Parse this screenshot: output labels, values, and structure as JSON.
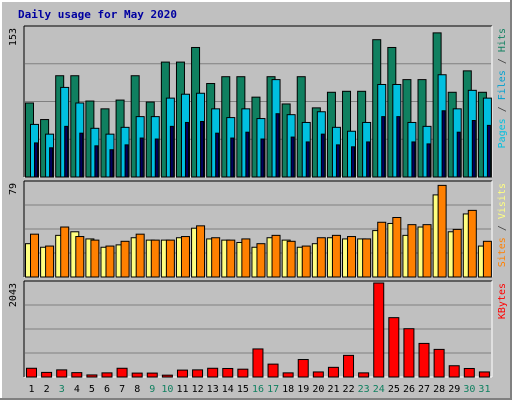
{
  "page": {
    "title": "Daily usage for May 2020"
  },
  "chart_data": [
    {
      "type": "bar",
      "panel": "pages-files-hits",
      "ymax_label": "153",
      "ylim": [
        0,
        153
      ],
      "grid": true,
      "legend": [
        {
          "text": "Pages",
          "color": "#00c0e0"
        },
        {
          "text": " / ",
          "color": "#404040"
        },
        {
          "text": "Files",
          "color": "#00a0d0"
        },
        {
          "text": " / ",
          "color": "#404040"
        },
        {
          "text": "Hits",
          "color": "#108060"
        }
      ],
      "categories": [
        "1",
        "2",
        "3",
        "4",
        "5",
        "6",
        "7",
        "8",
        "9",
        "10",
        "11",
        "12",
        "13",
        "14",
        "15",
        "16",
        "17",
        "18",
        "19",
        "20",
        "21",
        "22",
        "23",
        "24",
        "25",
        "26",
        "27",
        "28",
        "29",
        "30",
        "31"
      ],
      "series": [
        {
          "name": "Hits",
          "color": "#108060",
          "values": [
            76,
            59,
            104,
            104,
            78,
            70,
            79,
            104,
            77,
            118,
            118,
            133,
            96,
            103,
            103,
            82,
            103,
            75,
            103,
            71,
            87,
            88,
            88,
            141,
            133,
            100,
            100,
            148,
            87,
            109,
            87
          ]
        },
        {
          "name": "Files",
          "color": "#00c0e0",
          "values": [
            54,
            44,
            92,
            76,
            50,
            44,
            51,
            62,
            62,
            81,
            85,
            86,
            70,
            61,
            70,
            60,
            100,
            64,
            56,
            67,
            51,
            47,
            56,
            95,
            95,
            56,
            52,
            105,
            70,
            89,
            81
          ]
        },
        {
          "name": "Pages",
          "color": "#000060",
          "values": [
            35,
            30,
            52,
            45,
            32,
            28,
            33,
            40,
            39,
            52,
            56,
            57,
            45,
            40,
            46,
            39,
            65,
            41,
            36,
            44,
            33,
            31,
            36,
            62,
            62,
            36,
            34,
            68,
            46,
            58,
            53
          ]
        }
      ]
    },
    {
      "type": "bar",
      "panel": "sites-visits",
      "ymax_label": "79",
      "ylim": [
        0,
        79
      ],
      "grid": true,
      "legend": [
        {
          "text": "Sites",
          "color": "#ff8000"
        },
        {
          "text": " / ",
          "color": "#404040"
        },
        {
          "text": "Visits",
          "color": "#ffff80"
        }
      ],
      "categories": [
        "1",
        "2",
        "3",
        "4",
        "5",
        "6",
        "7",
        "8",
        "9",
        "10",
        "11",
        "12",
        "13",
        "14",
        "15",
        "16",
        "17",
        "18",
        "19",
        "20",
        "21",
        "22",
        "23",
        "24",
        "25",
        "26",
        "27",
        "28",
        "29",
        "30",
        "31"
      ],
      "series": [
        {
          "name": "Visits",
          "color": "#ffff80",
          "values": [
            28,
            25,
            35,
            38,
            32,
            25,
            27,
            33,
            31,
            31,
            33,
            41,
            32,
            31,
            29,
            25,
            33,
            31,
            25,
            28,
            33,
            32,
            32,
            39,
            45,
            35,
            42,
            69,
            38,
            53,
            26
          ]
        },
        {
          "name": "Sites",
          "color": "#ff8000",
          "values": [
            36,
            26,
            42,
            34,
            31,
            26,
            30,
            36,
            31,
            31,
            34,
            43,
            33,
            31,
            32,
            28,
            35,
            30,
            26,
            33,
            35,
            34,
            32,
            46,
            50,
            44,
            44,
            77,
            40,
            56,
            30
          ]
        }
      ]
    },
    {
      "type": "bar",
      "panel": "kbytes",
      "ymax_label": "2043",
      "ylim": [
        0,
        2043
      ],
      "grid": true,
      "legend": [
        {
          "text": "KBytes",
          "color": "#ff0000"
        }
      ],
      "categories": [
        "1",
        "2",
        "3",
        "4",
        "5",
        "6",
        "7",
        "8",
        "9",
        "10",
        "11",
        "12",
        "13",
        "14",
        "15",
        "16",
        "17",
        "18",
        "19",
        "20",
        "21",
        "22",
        "23",
        "24",
        "25",
        "26",
        "27",
        "28",
        "29",
        "30",
        "31"
      ],
      "series": [
        {
          "name": "KBytes",
          "color": "#ff0000",
          "values": [
            190,
            100,
            155,
            95,
            45,
            90,
            190,
            85,
            85,
            40,
            150,
            155,
            190,
            185,
            170,
            610,
            280,
            90,
            380,
            110,
            210,
            470,
            90,
            2043,
            1290,
            1050,
            730,
            600,
            245,
            185,
            110
          ]
        }
      ]
    }
  ],
  "day_labels": [
    {
      "text": "1",
      "color": "#000000"
    },
    {
      "text": "2",
      "color": "#000000"
    },
    {
      "text": "3",
      "color": "#108060"
    },
    {
      "text": "4",
      "color": "#000000"
    },
    {
      "text": "5",
      "color": "#000000"
    },
    {
      "text": "6",
      "color": "#000000"
    },
    {
      "text": "7",
      "color": "#000000"
    },
    {
      "text": "8",
      "color": "#000000"
    },
    {
      "text": "9",
      "color": "#108060"
    },
    {
      "text": "10",
      "color": "#108060"
    },
    {
      "text": "11",
      "color": "#000000"
    },
    {
      "text": "12",
      "color": "#000000"
    },
    {
      "text": "13",
      "color": "#000000"
    },
    {
      "text": "14",
      "color": "#000000"
    },
    {
      "text": "15",
      "color": "#000000"
    },
    {
      "text": "16",
      "color": "#108060"
    },
    {
      "text": "17",
      "color": "#108060"
    },
    {
      "text": "18",
      "color": "#000000"
    },
    {
      "text": "19",
      "color": "#000000"
    },
    {
      "text": "20",
      "color": "#000000"
    },
    {
      "text": "21",
      "color": "#000000"
    },
    {
      "text": "22",
      "color": "#000000"
    },
    {
      "text": "23",
      "color": "#108060"
    },
    {
      "text": "24",
      "color": "#108060"
    },
    {
      "text": "25",
      "color": "#000000"
    },
    {
      "text": "26",
      "color": "#000000"
    },
    {
      "text": "27",
      "color": "#000000"
    },
    {
      "text": "28",
      "color": "#000000"
    },
    {
      "text": "29",
      "color": "#000000"
    },
    {
      "text": "30",
      "color": "#108060"
    },
    {
      "text": "31",
      "color": "#108060"
    }
  ]
}
